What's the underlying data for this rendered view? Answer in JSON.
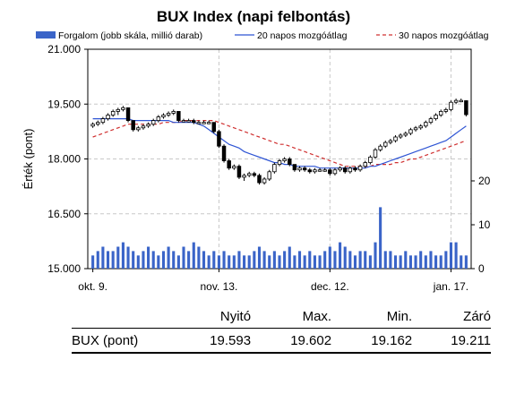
{
  "chart_data": {
    "type": "candlestick+bar+line",
    "title": "BUX Index (napi felbontás)",
    "ylabel": "Érték (pont)",
    "ylim": [
      15000,
      21000
    ],
    "yticks": [
      "21.000",
      "19.500",
      "18.000",
      "16.500",
      "15.000"
    ],
    "ytick_values": [
      21000,
      19500,
      18000,
      16500,
      15000
    ],
    "volume_axis": {
      "ylim": [
        0,
        50
      ],
      "ticks": [
        "20",
        "10",
        "0"
      ],
      "tick_values": [
        20,
        10,
        0
      ]
    },
    "xticks": [
      {
        "index": 0,
        "label": "okt. 9."
      },
      {
        "index": 25,
        "label": "nov. 13."
      },
      {
        "index": 47,
        "label": "dec. 12."
      },
      {
        "index": 71,
        "label": "jan. 17."
      }
    ],
    "legend": [
      {
        "name": "Forgalom (jobb skála, millió darab)",
        "style": "bar",
        "color": "#3a64c8"
      },
      {
        "name": "20 napos mozgóátlag",
        "style": "line",
        "color": "#2f55d4"
      },
      {
        "name": "30 napos mozgóátlag",
        "style": "dashed",
        "color": "#d03030"
      }
    ],
    "grid": true,
    "candles": [
      [
        18900,
        19000,
        18850,
        18950
      ],
      [
        18950,
        19050,
        18900,
        19000
      ],
      [
        19000,
        19150,
        18950,
        19100
      ],
      [
        19100,
        19250,
        19050,
        19200
      ],
      [
        19200,
        19350,
        19150,
        19300
      ],
      [
        19300,
        19400,
        19200,
        19350
      ],
      [
        19350,
        19450,
        19300,
        19400
      ],
      [
        19400,
        19350,
        19000,
        19050
      ],
      [
        19050,
        19000,
        18750,
        18800
      ],
      [
        18800,
        18900,
        18750,
        18850
      ],
      [
        18850,
        18950,
        18800,
        18900
      ],
      [
        18900,
        19000,
        18850,
        18950
      ],
      [
        18950,
        19100,
        18900,
        19050
      ],
      [
        19050,
        19200,
        19000,
        19150
      ],
      [
        19150,
        19250,
        19100,
        19200
      ],
      [
        19200,
        19300,
        19150,
        19250
      ],
      [
        19250,
        19350,
        19200,
        19300
      ],
      [
        19300,
        19250,
        19000,
        19050
      ],
      [
        19050,
        19100,
        19000,
        19050
      ],
      [
        19050,
        19100,
        19000,
        19050
      ],
      [
        19050,
        19100,
        18950,
        19000
      ],
      [
        19000,
        19050,
        18950,
        19000
      ],
      [
        19000,
        19050,
        18950,
        19000
      ],
      [
        19000,
        19050,
        18950,
        19000
      ],
      [
        19000,
        19000,
        18700,
        18750
      ],
      [
        18750,
        18800,
        18300,
        18350
      ],
      [
        18350,
        18400,
        17900,
        17950
      ],
      [
        17950,
        18000,
        17700,
        17750
      ],
      [
        17750,
        17850,
        17700,
        17800
      ],
      [
        17800,
        17850,
        17450,
        17500
      ],
      [
        17500,
        17600,
        17400,
        17550
      ],
      [
        17550,
        17650,
        17500,
        17600
      ],
      [
        17600,
        17650,
        17500,
        17550
      ],
      [
        17550,
        17600,
        17300,
        17350
      ],
      [
        17350,
        17500,
        17300,
        17450
      ],
      [
        17450,
        17700,
        17400,
        17650
      ],
      [
        17650,
        17900,
        17600,
        17850
      ],
      [
        17850,
        18000,
        17800,
        17950
      ],
      [
        17950,
        18050,
        17900,
        18000
      ],
      [
        18000,
        18050,
        17800,
        17850
      ],
      [
        17850,
        17850,
        17650,
        17700
      ],
      [
        17700,
        17800,
        17650,
        17750
      ],
      [
        17750,
        17800,
        17650,
        17700
      ],
      [
        17700,
        17750,
        17600,
        17650
      ],
      [
        17650,
        17750,
        17600,
        17700
      ],
      [
        17700,
        17750,
        17650,
        17700
      ],
      [
        17700,
        17750,
        17650,
        17700
      ],
      [
        17700,
        17750,
        17550,
        17600
      ],
      [
        17600,
        17750,
        17550,
        17700
      ],
      [
        17700,
        17800,
        17650,
        17750
      ],
      [
        17750,
        17800,
        17600,
        17650
      ],
      [
        17650,
        17800,
        17600,
        17750
      ],
      [
        17750,
        17800,
        17650,
        17700
      ],
      [
        17700,
        17850,
        17650,
        17800
      ],
      [
        17800,
        17950,
        17750,
        17900
      ],
      [
        17900,
        18100,
        17850,
        18050
      ],
      [
        18050,
        18300,
        18000,
        18250
      ],
      [
        18250,
        18400,
        18200,
        18350
      ],
      [
        18350,
        18500,
        18300,
        18450
      ],
      [
        18450,
        18550,
        18400,
        18500
      ],
      [
        18500,
        18650,
        18450,
        18600
      ],
      [
        18600,
        18700,
        18550,
        18650
      ],
      [
        18650,
        18750,
        18600,
        18700
      ],
      [
        18700,
        18850,
        18650,
        18800
      ],
      [
        18800,
        18900,
        18750,
        18850
      ],
      [
        18850,
        18950,
        18800,
        18900
      ],
      [
        18900,
        19050,
        18850,
        19000
      ],
      [
        19000,
        19150,
        18950,
        19100
      ],
      [
        19100,
        19250,
        19050,
        19200
      ],
      [
        19200,
        19350,
        19150,
        19300
      ],
      [
        19300,
        19400,
        19250,
        19350
      ],
      [
        19350,
        19600,
        19300,
        19550
      ],
      [
        19550,
        19650,
        19500,
        19600
      ],
      [
        19600,
        19650,
        19550,
        19600
      ],
      [
        19593,
        19602,
        19162,
        19211
      ]
    ],
    "volume": [
      3,
      4,
      5,
      4,
      4,
      5,
      6,
      5,
      4,
      3,
      4,
      5,
      4,
      3,
      4,
      5,
      4,
      3,
      5,
      4,
      6,
      5,
      4,
      3,
      4,
      3,
      4,
      3,
      3,
      4,
      3,
      3,
      4,
      5,
      4,
      3,
      4,
      3,
      4,
      5,
      3,
      4,
      3,
      4,
      3,
      3,
      4,
      5,
      4,
      6,
      5,
      4,
      3,
      4,
      4,
      3,
      6,
      14,
      4,
      4,
      3,
      3,
      4,
      3,
      3,
      4,
      3,
      4,
      3,
      3,
      4,
      6,
      6,
      3,
      3
    ],
    "ma20": [
      19100,
      19100,
      19100,
      19100,
      19100,
      19100,
      19100,
      19100,
      19050,
      19050,
      19050,
      19050,
      19050,
      19050,
      19050,
      19050,
      19000,
      19000,
      19000,
      19000,
      19000,
      18950,
      18900,
      18800,
      18700,
      18600,
      18500,
      18400,
      18350,
      18300,
      18200,
      18150,
      18100,
      18050,
      18000,
      17950,
      17900,
      17900,
      17850,
      17850,
      17800,
      17800,
      17800,
      17800,
      17800,
      17750,
      17750,
      17750,
      17750,
      17750,
      17750,
      17750,
      17750,
      17750,
      17750,
      17800,
      17800,
      17850,
      17900,
      17950,
      18000,
      18050,
      18100,
      18150,
      18200,
      18250,
      18300,
      18350,
      18400,
      18450,
      18500,
      18600,
      18700,
      18800,
      18900
    ],
    "ma30": [
      18600,
      18650,
      18700,
      18750,
      18800,
      18850,
      18900,
      18950,
      18950,
      18950,
      18950,
      18950,
      18950,
      18950,
      19000,
      19000,
      19000,
      19000,
      19050,
      19050,
      19050,
      19050,
      19050,
      19050,
      19050,
      19000,
      18950,
      18900,
      18850,
      18800,
      18750,
      18700,
      18650,
      18600,
      18550,
      18500,
      18450,
      18400,
      18400,
      18350,
      18300,
      18250,
      18200,
      18150,
      18100,
      18050,
      18000,
      17950,
      17900,
      17850,
      17800,
      17800,
      17800,
      17800,
      17800,
      17800,
      17850,
      17850,
      17850,
      17850,
      17900,
      17900,
      17950,
      18000,
      18000,
      18050,
      18100,
      18150,
      18200,
      18250,
      18300,
      18350,
      18400,
      18450,
      18500
    ]
  },
  "table": {
    "headers": [
      "Nyitó",
      "Max.",
      "Min.",
      "Záró"
    ],
    "row": {
      "label": "BUX (pont)",
      "values": [
        "19.593",
        "19.602",
        "19.162",
        "19.211"
      ]
    }
  }
}
